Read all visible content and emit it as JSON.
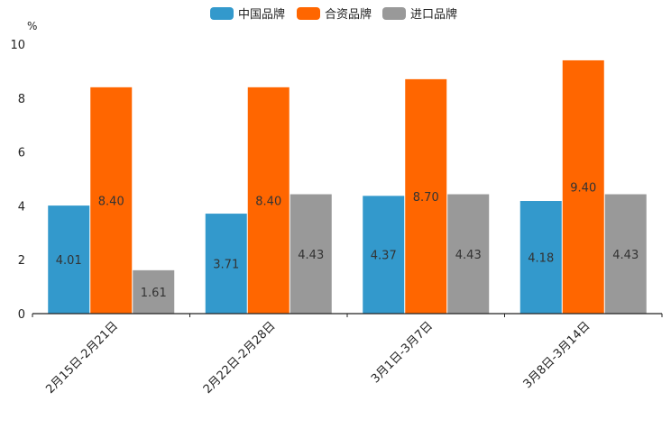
{
  "chart_data": {
    "type": "bar",
    "title": "",
    "ylabel": "%",
    "xlabel": "",
    "ylim": [
      0,
      10
    ],
    "yticks": [
      0,
      2,
      4,
      6,
      8,
      10
    ],
    "categories": [
      "2月15日-2月21日",
      "2月22日-2月28日",
      "3月1日-3月7日",
      "3月8日-3月14日"
    ],
    "series": [
      {
        "name": "中国品牌",
        "color": "#3399cc",
        "values": [
          4.01,
          3.71,
          4.37,
          4.18
        ],
        "labels": [
          "4.01",
          "3.71",
          "4.37",
          "4.18"
        ]
      },
      {
        "name": "合资品牌",
        "color": "#ff6600",
        "values": [
          8.4,
          8.4,
          8.7,
          9.4
        ],
        "labels": [
          "8.40",
          "8.40",
          "8.70",
          "9.40"
        ]
      },
      {
        "name": "进口品牌",
        "color": "#999999",
        "values": [
          1.61,
          4.43,
          4.43,
          4.43
        ],
        "labels": [
          "1.61",
          "4.43",
          "4.43",
          "4.43"
        ]
      }
    ],
    "legend": "top-center",
    "grid": false
  }
}
